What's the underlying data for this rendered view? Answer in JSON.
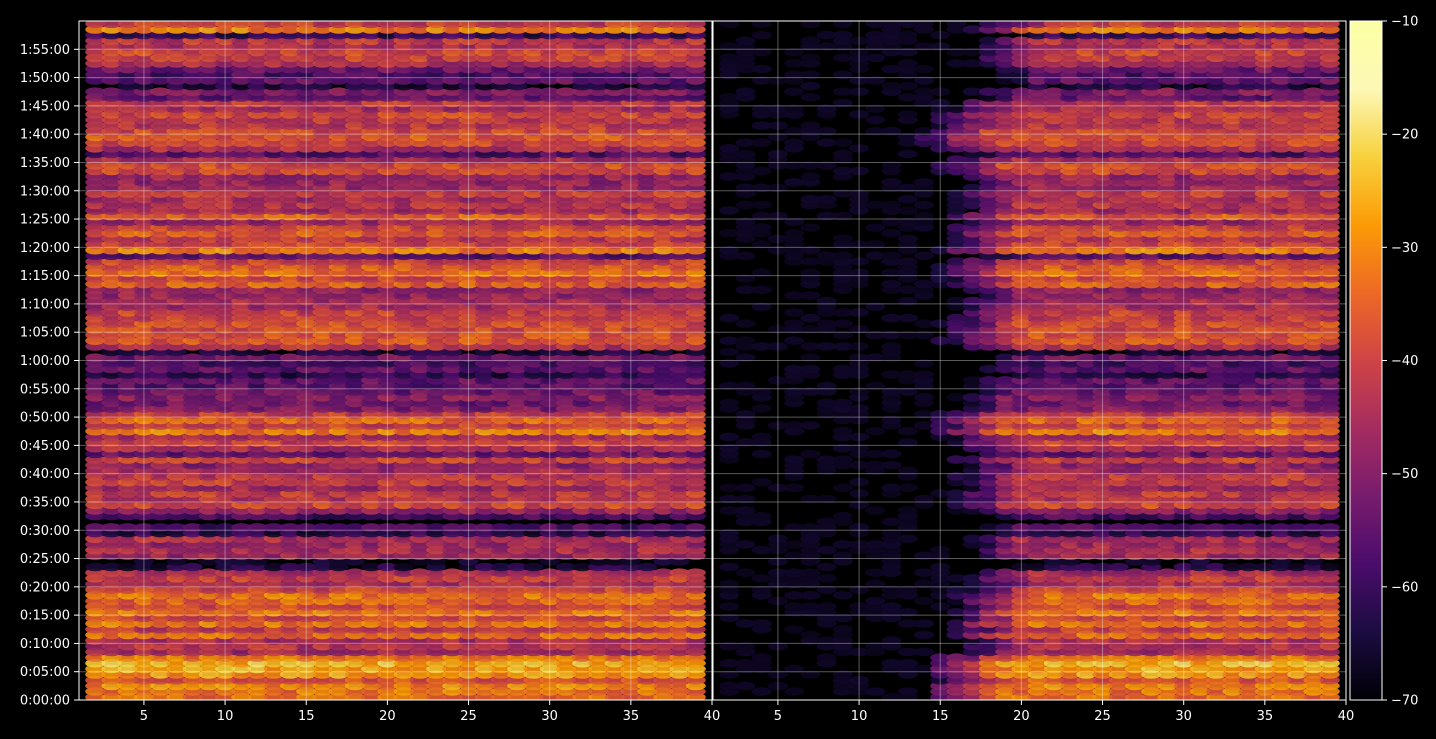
{
  "chart_data": {
    "type": "heatmap",
    "description_scale": "dB",
    "panels": [
      {
        "name": "left",
        "x_range": [
          1,
          40
        ],
        "x_ticks": [
          "5",
          "10",
          "15",
          "20",
          "25",
          "30",
          "35",
          "40"
        ],
        "x_tick_values": [
          5,
          10,
          15,
          20,
          25,
          30,
          35,
          40
        ],
        "data_x_range": [
          2,
          39
        ]
      },
      {
        "name": "right",
        "x_range": [
          1,
          40
        ],
        "x_ticks": [
          "5",
          "10",
          "15",
          "20",
          "25",
          "30",
          "35",
          "40"
        ],
        "x_tick_values": [
          5,
          10,
          15,
          20,
          25,
          30,
          35,
          40
        ],
        "data_x_range": [
          2,
          39
        ]
      }
    ],
    "y_range_seconds": [
      0,
      7200
    ],
    "y_ticks": [
      "0:00:00",
      "0:05:00",
      "0:10:00",
      "0:15:00",
      "0:20:00",
      "0:25:00",
      "0:30:00",
      "0:35:00",
      "0:40:00",
      "0:45:00",
      "0:50:00",
      "0:55:00",
      "1:00:00",
      "1:05:00",
      "1:10:00",
      "1:15:00",
      "1:20:00",
      "1:25:00",
      "1:30:00",
      "1:35:00",
      "1:40:00",
      "1:45:00",
      "1:50:00",
      "1:55:00"
    ],
    "colorbar": {
      "colormap": "inferno",
      "range": [
        -70,
        -10
      ],
      "ticks": [
        "−10",
        "−20",
        "−30",
        "−40",
        "−50",
        "−60",
        "−70"
      ],
      "tick_values": [
        -10,
        -20,
        -30,
        -40,
        -50,
        -60,
        -70
      ]
    },
    "grid": true,
    "row_intensity_profile": [
      [
        0,
        -36
      ],
      [
        200,
        -32
      ],
      [
        420,
        -28
      ],
      [
        560,
        -50
      ],
      [
        660,
        -35
      ],
      [
        720,
        -38
      ],
      [
        960,
        -36
      ],
      [
        1020,
        -30
      ],
      [
        1140,
        -42
      ],
      [
        1260,
        -44
      ],
      [
        1380,
        -46
      ],
      [
        1500,
        -50
      ],
      [
        1620,
        -46
      ],
      [
        1800,
        -40
      ],
      [
        1860,
        -68
      ],
      [
        2040,
        -42
      ],
      [
        2160,
        -44
      ],
      [
        2280,
        -38
      ],
      [
        2400,
        -46
      ],
      [
        2520,
        -44
      ],
      [
        2640,
        -48
      ],
      [
        2940,
        -34
      ],
      [
        3060,
        -44
      ],
      [
        3240,
        -50
      ],
      [
        3480,
        -56
      ],
      [
        3600,
        -64
      ],
      [
        3660,
        -44
      ],
      [
        3780,
        -38
      ],
      [
        3900,
        -40
      ],
      [
        4080,
        -42
      ],
      [
        4320,
        -44
      ],
      [
        4560,
        -36
      ],
      [
        4800,
        -32
      ],
      [
        4920,
        -38
      ],
      [
        5040,
        -44
      ],
      [
        5160,
        -40
      ],
      [
        5400,
        -42
      ],
      [
        5520,
        -46
      ],
      [
        5640,
        -40
      ],
      [
        5760,
        -42
      ],
      [
        5880,
        -38
      ],
      [
        6060,
        -40
      ],
      [
        6240,
        -46
      ],
      [
        6420,
        -48
      ],
      [
        6600,
        -54
      ],
      [
        6780,
        -46
      ],
      [
        6900,
        -40
      ],
      [
        7020,
        -44
      ],
      [
        7140,
        -34
      ]
    ],
    "right_panel_onset_x": [
      [
        0,
        16
      ],
      [
        1200,
        18
      ],
      [
        1800,
        17
      ],
      [
        2400,
        17
      ],
      [
        3000,
        16
      ],
      [
        3600,
        17
      ],
      [
        4200,
        17
      ],
      [
        4800,
        17
      ],
      [
        5400,
        17
      ],
      [
        6000,
        15
      ],
      [
        6600,
        18
      ],
      [
        7200,
        19
      ]
    ]
  }
}
